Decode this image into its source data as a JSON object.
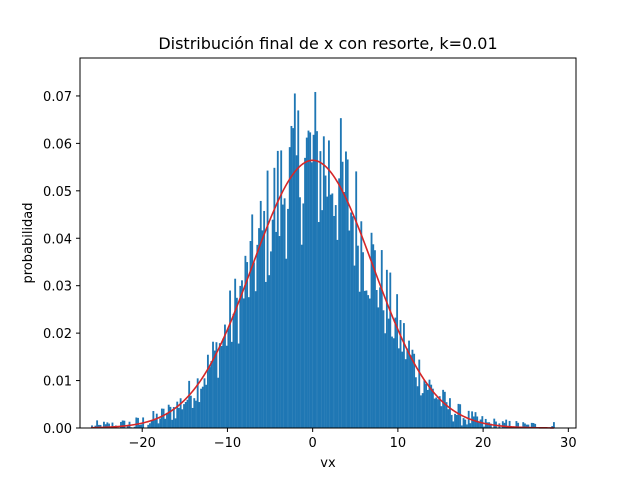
{
  "chart_data": {
    "type": "bar",
    "title": "Distribución final de x con resorte, k=0.01",
    "xlabel": "vx",
    "ylabel": "probabilidad",
    "xlim": [
      -27.3,
      30.9
    ],
    "ylim": [
      0.0,
      0.078
    ],
    "x_ticks": [
      -20,
      -10,
      0,
      10,
      20,
      30
    ],
    "x_tick_labels": [
      "−20",
      "−10",
      "0",
      "10",
      "20",
      "30"
    ],
    "y_ticks": [
      0.0,
      0.01,
      0.02,
      0.03,
      0.04,
      0.05,
      0.06,
      0.07
    ],
    "y_tick_labels": [
      "0.00",
      "0.01",
      "0.02",
      "0.03",
      "0.04",
      "0.05",
      "0.06",
      "0.07"
    ],
    "grid": false,
    "histogram": {
      "color": "#1f77b4",
      "x_range": [
        -26.0,
        28.4
      ],
      "bin_width": 0.2,
      "density_mean": 0.0,
      "density_std": 7.07
    },
    "fit_curve": {
      "color": "#d62728",
      "mean": 0.0,
      "std": 7.07,
      "x_range": [
        -26.0,
        28.4
      ]
    }
  }
}
